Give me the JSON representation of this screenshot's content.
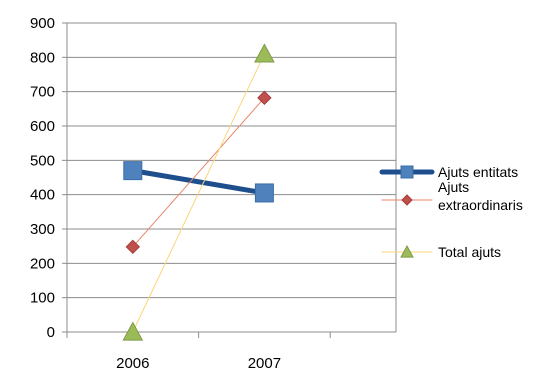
{
  "chart_data": {
    "type": "line",
    "title": "",
    "xlabel": "",
    "ylabel": "",
    "categories": [
      "2006",
      "2007"
    ],
    "ylim": [
      0,
      900
    ],
    "yticks": [
      "0",
      "100",
      "200",
      "300",
      "400",
      "500",
      "600",
      "700",
      "800",
      "900"
    ],
    "grid": "horizontal",
    "legend_position": "right",
    "series": [
      {
        "name": "Ajuts entitats",
        "legend_lines": [
          "Ajuts entitats"
        ],
        "values": [
          470,
          405
        ],
        "color": "#1f4e8c",
        "marker_color": "#4f81bd",
        "marker": "square",
        "line_weight": "thick"
      },
      {
        "name": "Ajuts extraordinaris",
        "legend_lines": [
          "Ajuts",
          "extraordinaris"
        ],
        "values": [
          248,
          682
        ],
        "color": "#e8856a",
        "marker_color": "#c0504d",
        "marker": "diamond",
        "line_weight": "thin"
      },
      {
        "name": "Total ajuts",
        "legend_lines": [
          "Total ajuts"
        ],
        "values": [
          0,
          810
        ],
        "color": "#fad67a",
        "marker_color": "#9bbb59",
        "marker": "triangle",
        "line_weight": "thin"
      }
    ]
  }
}
